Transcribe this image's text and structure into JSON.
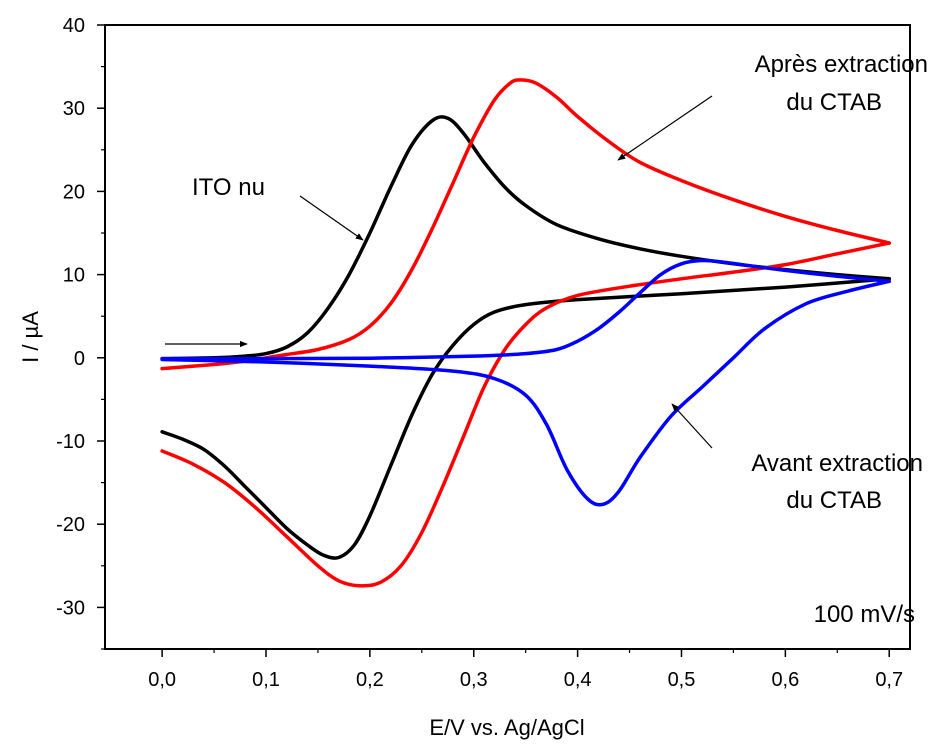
{
  "chart_data": {
    "type": "line",
    "title": "",
    "xlabel": "E/V vs. Ag/AgCl",
    "ylabel": "I / µA",
    "xlim": [
      -0.055,
      0.72
    ],
    "ylim": [
      -35,
      40
    ],
    "x_ticks": [
      0.0,
      0.1,
      0.2,
      0.3,
      0.4,
      0.5,
      0.6,
      0.7
    ],
    "x_tick_labels": [
      "0,0",
      "0,1",
      "0,2",
      "0,3",
      "0,4",
      "0,5",
      "0,6",
      "0,7"
    ],
    "y_ticks": [
      -30,
      -20,
      -10,
      0,
      10,
      20,
      30,
      40
    ],
    "y_tick_labels": [
      "-30",
      "-20",
      "-10",
      "0",
      "10",
      "20",
      "30",
      "40"
    ],
    "grid": false,
    "series": [
      {
        "color": "#000000",
        "forward": [
          [
            0.0,
            -0.1
          ],
          [
            0.05,
            0.0
          ],
          [
            0.08,
            0.2
          ],
          [
            0.1,
            0.5
          ],
          [
            0.12,
            1.3
          ],
          [
            0.14,
            3.0
          ],
          [
            0.16,
            6.0
          ],
          [
            0.18,
            10.0
          ],
          [
            0.2,
            15.0
          ],
          [
            0.22,
            20.5
          ],
          [
            0.24,
            25.5
          ],
          [
            0.26,
            28.5
          ],
          [
            0.275,
            28.8
          ],
          [
            0.29,
            27.0
          ],
          [
            0.31,
            23.5
          ],
          [
            0.33,
            20.5
          ],
          [
            0.35,
            18.3
          ],
          [
            0.38,
            16.0
          ],
          [
            0.42,
            14.3
          ],
          [
            0.46,
            13.1
          ],
          [
            0.5,
            12.2
          ],
          [
            0.55,
            11.3
          ],
          [
            0.6,
            10.6
          ],
          [
            0.65,
            10.0
          ],
          [
            0.7,
            9.5
          ]
        ],
        "reverse": [
          [
            0.7,
            9.5
          ],
          [
            0.6,
            8.5
          ],
          [
            0.5,
            7.7
          ],
          [
            0.4,
            7.0
          ],
          [
            0.35,
            6.4
          ],
          [
            0.32,
            5.5
          ],
          [
            0.3,
            4.0
          ],
          [
            0.28,
            1.5
          ],
          [
            0.26,
            -2.0
          ],
          [
            0.24,
            -7.0
          ],
          [
            0.22,
            -13.0
          ],
          [
            0.2,
            -19.0
          ],
          [
            0.185,
            -22.5
          ],
          [
            0.17,
            -24.0
          ],
          [
            0.155,
            -23.7
          ],
          [
            0.14,
            -22.5
          ],
          [
            0.12,
            -20.5
          ],
          [
            0.1,
            -18.0
          ],
          [
            0.08,
            -15.5
          ],
          [
            0.06,
            -13.0
          ],
          [
            0.04,
            -11.0
          ],
          [
            0.02,
            -9.8
          ],
          [
            0.0,
            -8.9
          ]
        ]
      },
      {
        "color": "#ff0000",
        "forward": [
          [
            0.0,
            -1.3
          ],
          [
            0.05,
            -0.8
          ],
          [
            0.08,
            -0.4
          ],
          [
            0.1,
            0.0
          ],
          [
            0.12,
            0.4
          ],
          [
            0.15,
            1.0
          ],
          [
            0.18,
            2.2
          ],
          [
            0.2,
            3.8
          ],
          [
            0.22,
            6.5
          ],
          [
            0.24,
            10.5
          ],
          [
            0.26,
            15.5
          ],
          [
            0.28,
            21.0
          ],
          [
            0.3,
            26.5
          ],
          [
            0.32,
            31.0
          ],
          [
            0.335,
            33.0
          ],
          [
            0.345,
            33.4
          ],
          [
            0.36,
            33.0
          ],
          [
            0.38,
            31.3
          ],
          [
            0.4,
            29.0
          ],
          [
            0.43,
            26.0
          ],
          [
            0.46,
            23.5
          ],
          [
            0.5,
            21.3
          ],
          [
            0.55,
            19.0
          ],
          [
            0.6,
            17.0
          ],
          [
            0.65,
            15.3
          ],
          [
            0.7,
            13.8
          ]
        ],
        "reverse": [
          [
            0.7,
            13.8
          ],
          [
            0.65,
            12.5
          ],
          [
            0.6,
            11.2
          ],
          [
            0.55,
            10.3
          ],
          [
            0.5,
            9.5
          ],
          [
            0.45,
            8.6
          ],
          [
            0.4,
            7.5
          ],
          [
            0.37,
            6.0
          ],
          [
            0.35,
            4.0
          ],
          [
            0.33,
            1.0
          ],
          [
            0.31,
            -3.5
          ],
          [
            0.29,
            -9.5
          ],
          [
            0.27,
            -15.5
          ],
          [
            0.25,
            -21.0
          ],
          [
            0.23,
            -25.0
          ],
          [
            0.21,
            -27.0
          ],
          [
            0.19,
            -27.4
          ],
          [
            0.17,
            -26.8
          ],
          [
            0.15,
            -25.0
          ],
          [
            0.12,
            -21.5
          ],
          [
            0.09,
            -18.0
          ],
          [
            0.06,
            -15.0
          ],
          [
            0.03,
            -12.8
          ],
          [
            0.0,
            -11.2
          ]
        ]
      },
      {
        "color": "#0000ff",
        "forward": [
          [
            0.0,
            -0.1
          ],
          [
            0.1,
            -0.1
          ],
          [
            0.2,
            -0.05
          ],
          [
            0.3,
            0.2
          ],
          [
            0.35,
            0.5
          ],
          [
            0.38,
            1.0
          ],
          [
            0.4,
            2.0
          ],
          [
            0.42,
            3.5
          ],
          [
            0.44,
            5.5
          ],
          [
            0.46,
            7.8
          ],
          [
            0.48,
            10.0
          ],
          [
            0.5,
            11.3
          ],
          [
            0.52,
            11.7
          ],
          [
            0.54,
            11.5
          ],
          [
            0.57,
            11.0
          ],
          [
            0.6,
            10.5
          ],
          [
            0.65,
            9.8
          ],
          [
            0.7,
            9.2
          ]
        ],
        "reverse": [
          [
            0.7,
            9.2
          ],
          [
            0.66,
            8.0
          ],
          [
            0.62,
            6.5
          ],
          [
            0.58,
            3.5
          ],
          [
            0.55,
            0.0
          ],
          [
            0.52,
            -3.5
          ],
          [
            0.49,
            -7.0
          ],
          [
            0.46,
            -12.0
          ],
          [
            0.44,
            -16.0
          ],
          [
            0.425,
            -17.6
          ],
          [
            0.41,
            -17.0
          ],
          [
            0.39,
            -13.5
          ],
          [
            0.37,
            -8.0
          ],
          [
            0.35,
            -4.5
          ],
          [
            0.32,
            -2.5
          ],
          [
            0.28,
            -1.6
          ],
          [
            0.2,
            -1.0
          ],
          [
            0.1,
            -0.5
          ],
          [
            0.0,
            -0.2
          ]
        ]
      }
    ],
    "annotations": [
      {
        "lines": [
          "Après extraction",
          "du CTAB"
        ],
        "color": "#000000"
      },
      {
        "lines": [
          "ITO nu"
        ],
        "color": "#000000"
      },
      {
        "lines": [
          "Avant extraction",
          "du CTAB"
        ],
        "color": "#000000"
      },
      {
        "lines": [
          "100 mV/s"
        ],
        "color": "#000000"
      }
    ]
  }
}
